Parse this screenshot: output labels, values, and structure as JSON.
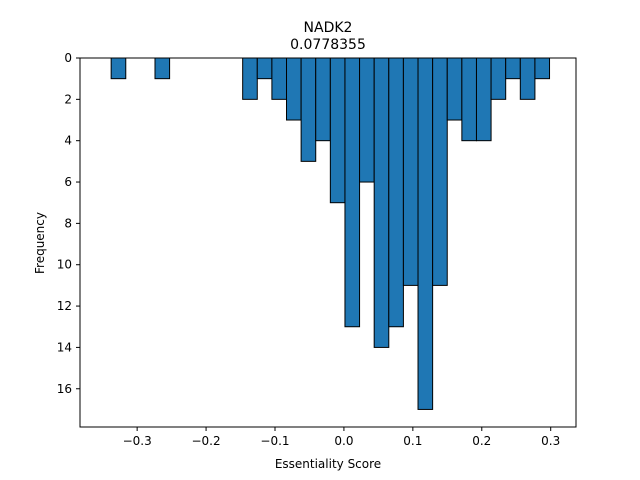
{
  "chart_data": {
    "type": "bar",
    "subtype": "histogram",
    "title": "NADK2",
    "subtitle": "0.0778355",
    "xlabel": "Essentiality Score",
    "ylabel": "Frequency",
    "xlim": [
      -0.3829,
      0.3367
    ],
    "ylim": [
      17.85,
      0
    ],
    "y_inverted": true,
    "bin_width": 0.0212,
    "bars": [
      {
        "x": -0.3377,
        "count": 1
      },
      {
        "x": -0.2741,
        "count": 1
      },
      {
        "x": -0.1469,
        "count": 2
      },
      {
        "x": -0.1257,
        "count": 1
      },
      {
        "x": -0.1045,
        "count": 2
      },
      {
        "x": -0.0833,
        "count": 3
      },
      {
        "x": -0.0621,
        "count": 5
      },
      {
        "x": -0.0409,
        "count": 4
      },
      {
        "x": -0.0197,
        "count": 7
      },
      {
        "x": 0.0015,
        "count": 13
      },
      {
        "x": 0.0227,
        "count": 6
      },
      {
        "x": 0.0439,
        "count": 14
      },
      {
        "x": 0.0651,
        "count": 13
      },
      {
        "x": 0.0863,
        "count": 11
      },
      {
        "x": 0.1075,
        "count": 17
      },
      {
        "x": 0.1287,
        "count": 11
      },
      {
        "x": 0.1499,
        "count": 3
      },
      {
        "x": 0.1711,
        "count": 4
      },
      {
        "x": 0.1923,
        "count": 4
      },
      {
        "x": 0.2135,
        "count": 2
      },
      {
        "x": 0.2347,
        "count": 1
      },
      {
        "x": 0.2559,
        "count": 2
      },
      {
        "x": 0.2771,
        "count": 1
      }
    ],
    "x_ticks": [
      -0.3,
      -0.2,
      -0.1,
      0.0,
      0.1,
      0.2,
      0.3
    ],
    "x_tick_labels": [
      "−0.3",
      "−0.2",
      "−0.1",
      "0.0",
      "0.1",
      "0.2",
      "0.3"
    ],
    "y_ticks": [
      0,
      2,
      4,
      6,
      8,
      10,
      12,
      14,
      16
    ],
    "y_tick_labels": [
      "0",
      "2",
      "4",
      "6",
      "8",
      "10",
      "12",
      "14",
      "16"
    ],
    "bar_color": "#1f77b4",
    "bar_edge_color": "#000000",
    "grid": false,
    "legend": "none"
  }
}
